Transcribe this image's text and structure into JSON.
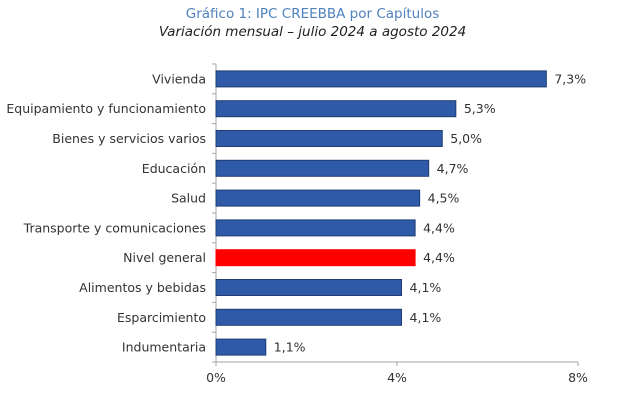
{
  "chart_data": {
    "type": "bar",
    "orientation": "horizontal",
    "title": "Gráfico 1: IPC CREEBBA por Capítulos",
    "subtitle": "Variación mensual – julio 2024 a agosto 2024",
    "xlabel": "",
    "ylabel": "",
    "categories": [
      "Vivienda",
      "Equipamiento y funcionamiento",
      "Bienes y servicios varios",
      "Educación",
      "Salud",
      "Transporte y comunicaciones",
      "Nivel general",
      "Alimentos y bebidas",
      "Esparcimiento",
      "Indumentaria"
    ],
    "values": [
      7.3,
      5.3,
      5.0,
      4.7,
      4.5,
      4.4,
      4.4,
      4.1,
      4.1,
      1.1
    ],
    "value_labels": [
      "7,3%",
      "5,3%",
      "5,0%",
      "4,7%",
      "4,5%",
      "4,4%",
      "4,4%",
      "4,1%",
      "4,1%",
      "1,1%"
    ],
    "highlight": "Nivel general",
    "xlim": [
      0,
      8
    ],
    "xticks": [
      0,
      4,
      8
    ],
    "xtick_labels": [
      "0%",
      "4%",
      "8%"
    ],
    "grid": false,
    "colors": {
      "bar": "#2e5aa8",
      "bar_border": "#1f3d73",
      "highlight": "#ff0000",
      "axis": "#a6a6a6"
    }
  }
}
